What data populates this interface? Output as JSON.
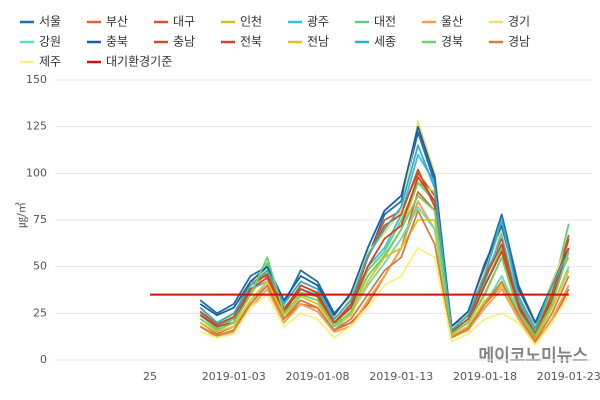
{
  "chart_data": {
    "type": "line",
    "y_label": "㎍/㎥",
    "watermark": "메이코노미뉴스",
    "categories": [
      "25",
      null,
      null,
      null,
      null,
      "2019-01-03",
      null,
      null,
      null,
      null,
      "2019-01-08",
      null,
      null,
      null,
      null,
      "2019-01-13",
      null,
      null,
      null,
      null,
      "2019-01-18",
      null,
      null,
      null,
      null,
      "2019-01-23"
    ],
    "ylim": [
      0,
      150
    ],
    "yticks": [
      0,
      25,
      50,
      75,
      100,
      125,
      150
    ],
    "grid": true,
    "series": [
      {
        "name": "서울",
        "color": "#1f6fa8",
        "values": [
          null,
          null,
          null,
          32,
          25,
          30,
          45,
          50,
          30,
          48,
          42,
          25,
          35,
          55,
          78,
          85,
          122,
          95,
          18,
          25,
          50,
          78,
          40,
          20,
          38,
          58
        ]
      },
      {
        "name": "부산",
        "color": "#e0662a",
        "values": [
          null,
          null,
          null,
          20,
          14,
          18,
          30,
          40,
          22,
          30,
          28,
          16,
          20,
          30,
          45,
          60,
          90,
          80,
          12,
          18,
          30,
          40,
          25,
          10,
          20,
          38
        ]
      },
      {
        "name": "대구",
        "color": "#d9542b",
        "values": [
          null,
          null,
          null,
          28,
          20,
          24,
          42,
          45,
          25,
          40,
          36,
          20,
          28,
          55,
          75,
          80,
          100,
          88,
          15,
          22,
          45,
          65,
          30,
          12,
          35,
          67
        ]
      },
      {
        "name": "인천",
        "color": "#c8c824",
        "values": [
          null,
          null,
          null,
          22,
          16,
          20,
          35,
          48,
          22,
          35,
          32,
          18,
          30,
          45,
          55,
          70,
          95,
          90,
          14,
          20,
          35,
          55,
          25,
          14,
          38,
          55
        ]
      },
      {
        "name": "광주",
        "color": "#3cbde0",
        "values": [
          null,
          null,
          null,
          25,
          18,
          22,
          38,
          42,
          28,
          38,
          35,
          22,
          28,
          50,
          60,
          78,
          110,
          95,
          16,
          24,
          42,
          68,
          32,
          16,
          40,
          60
        ]
      },
      {
        "name": "대전",
        "color": "#5ad27a",
        "values": [
          null,
          null,
          null,
          24,
          17,
          22,
          36,
          52,
          28,
          36,
          34,
          18,
          30,
          48,
          58,
          75,
          95,
          85,
          15,
          22,
          40,
          60,
          28,
          15,
          35,
          73
        ]
      },
      {
        "name": "울산",
        "color": "#f0a050",
        "values": [
          null,
          null,
          null,
          18,
          12,
          15,
          28,
          38,
          20,
          30,
          26,
          15,
          18,
          32,
          45,
          60,
          85,
          70,
          12,
          16,
          28,
          38,
          22,
          9,
          22,
          40
        ]
      },
      {
        "name": "경기",
        "color": "#f0e070",
        "values": [
          null,
          null,
          null,
          26,
          20,
          24,
          40,
          50,
          30,
          42,
          38,
          20,
          34,
          58,
          68,
          80,
          128,
          100,
          16,
          25,
          48,
          70,
          35,
          18,
          42,
          63
        ]
      },
      {
        "name": "강원",
        "color": "#60e0b0",
        "values": [
          null,
          null,
          null,
          20,
          15,
          18,
          32,
          40,
          25,
          32,
          28,
          16,
          25,
          40,
          52,
          65,
          82,
          70,
          12,
          18,
          30,
          45,
          25,
          12,
          28,
          50
        ]
      },
      {
        "name": "충북",
        "color": "#1a5fa0",
        "values": [
          null,
          null,
          null,
          30,
          24,
          28,
          42,
          50,
          32,
          45,
          40,
          24,
          36,
          60,
          80,
          88,
          125,
          98,
          18,
          26,
          52,
          72,
          38,
          20,
          40,
          60
        ]
      },
      {
        "name": "충남",
        "color": "#c85020",
        "values": [
          null,
          null,
          null,
          26,
          19,
          23,
          40,
          46,
          27,
          40,
          36,
          20,
          30,
          55,
          72,
          78,
          102,
          82,
          15,
          22,
          44,
          62,
          30,
          14,
          35,
          65
        ]
      },
      {
        "name": "전북",
        "color": "#d84020",
        "values": [
          null,
          null,
          null,
          24,
          18,
          20,
          38,
          44,
          26,
          38,
          34,
          20,
          28,
          50,
          65,
          72,
          98,
          85,
          14,
          20,
          40,
          58,
          28,
          12,
          32,
          60
        ]
      },
      {
        "name": "전남",
        "color": "#e8c020",
        "values": [
          null,
          null,
          null,
          20,
          15,
          18,
          32,
          42,
          24,
          34,
          30,
          18,
          24,
          42,
          55,
          60,
          75,
          75,
          13,
          18,
          32,
          40,
          24,
          11,
          28,
          48
        ]
      },
      {
        "name": "세종",
        "color": "#30b0d0",
        "values": [
          null,
          null,
          null,
          28,
          20,
          25,
          40,
          48,
          30,
          42,
          38,
          22,
          32,
          56,
          70,
          82,
          115,
          92,
          16,
          24,
          46,
          75,
          34,
          17,
          40,
          58
        ]
      },
      {
        "name": "경북",
        "color": "#70d070",
        "values": [
          null,
          null,
          null,
          22,
          16,
          20,
          35,
          55,
          25,
          35,
          32,
          18,
          26,
          45,
          56,
          70,
          88,
          80,
          14,
          20,
          36,
          55,
          26,
          13,
          30,
          58
        ]
      },
      {
        "name": "경남",
        "color": "#d08040",
        "values": [
          null,
          null,
          null,
          18,
          13,
          16,
          30,
          40,
          22,
          32,
          28,
          16,
          22,
          35,
          48,
          55,
          80,
          62,
          12,
          17,
          30,
          42,
          24,
          10,
          25,
          45
        ]
      },
      {
        "name": "제주",
        "color": "#f8f080",
        "values": [
          null,
          null,
          null,
          15,
          12,
          14,
          28,
          35,
          18,
          25,
          22,
          12,
          18,
          28,
          40,
          45,
          60,
          55,
          10,
          14,
          22,
          25,
          20,
          8,
          20,
          35
        ]
      },
      {
        "name": "대기환경기준",
        "color": "#cc1111",
        "values": [
          35,
          35,
          35,
          35,
          35,
          35,
          35,
          35,
          35,
          35,
          35,
          35,
          35,
          35,
          35,
          35,
          35,
          35,
          35,
          35,
          35,
          35,
          35,
          35,
          35,
          35
        ]
      }
    ]
  }
}
